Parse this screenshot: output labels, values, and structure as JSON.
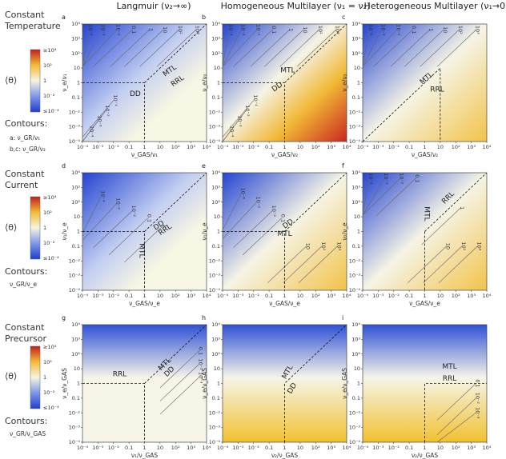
{
  "columns": [
    {
      "title": "Langmuir (ν₂→∞)"
    },
    {
      "title": "Homogeneous Multilayer (ν₁ = ν₂)"
    },
    {
      "title": "Heterogeneous Multilayer (ν₁→0)"
    }
  ],
  "rows": [
    {
      "title_line1": "Constant",
      "title_line2": "Temperature",
      "theta": "⟨θ⟩",
      "cb_ticks": [
        "≥10⁴",
        "10²",
        "1",
        "10⁻²",
        "≤10⁻⁴"
      ],
      "contours_label": "Contours:",
      "contour_lines": [
        "a:  ν_GR/ν₁",
        "b,c:  ν_GR/ν₂"
      ]
    },
    {
      "title_line1": "Constant",
      "title_line2": "Current",
      "theta": "⟨θ⟩",
      "cb_ticks": [
        "≥10⁴",
        "10²",
        "1",
        "10⁻²",
        "≤10⁻⁴"
      ],
      "contours_label": "Contours:",
      "contour_lines": [
        "ν_GR/ν_e"
      ]
    },
    {
      "title_line1": "Constant",
      "title_line2": "Precursor",
      "theta": "⟨θ⟩",
      "cb_ticks": [
        "≥10⁴",
        "10²",
        "1",
        "10⁻²",
        "≤10⁻⁴"
      ],
      "contours_label": "Contours:",
      "contour_lines": [
        "ν_GR/ν_GAS"
      ]
    }
  ],
  "chart_data": [
    {
      "type": "heatmap",
      "panel": "a",
      "xlabel": "ν_GAS/ν₁",
      "ylabel": "ν_e/ν₁",
      "xlim": [
        -4,
        4
      ],
      "ylim": [
        -4,
        4
      ],
      "scale": "log10",
      "xticks": [
        "10⁻⁴",
        "10⁻³",
        "10⁻²",
        "0.1",
        "1",
        "10",
        "10²",
        "10³",
        "10⁴"
      ],
      "yticks": [
        "10⁴",
        "10³",
        "10²",
        "10",
        "1",
        "0.1",
        "10⁻²",
        "10⁻³",
        "10⁻⁴"
      ],
      "regions": [
        "MTL",
        "RRL",
        "DD"
      ],
      "contour_labels": [
        "10⁻⁴",
        "10⁻³",
        "10⁻²",
        "0.1",
        "1",
        "10",
        "10²",
        "10³",
        "10⁻¹",
        "10⁻²",
        "10⁻³",
        "10⁻⁴"
      ]
    },
    {
      "type": "heatmap",
      "panel": "b",
      "xlabel": "ν_GAS/ν₂",
      "ylabel": "ν_e/ν₂",
      "xlim": [
        -4,
        4
      ],
      "ylim": [
        -4,
        4
      ],
      "scale": "log10",
      "xticks": [
        "10⁻⁴",
        "10⁻³",
        "10⁻²",
        "0.1",
        "1",
        "10",
        "10²",
        "10³",
        "10⁴"
      ],
      "yticks": [
        "10⁴",
        "10³",
        "10²",
        "10",
        "1",
        "0.1",
        "10⁻²",
        "10⁻³",
        "10⁻⁴"
      ],
      "regions": [
        "MTL",
        "DD"
      ],
      "contour_labels": [
        "10⁻⁴",
        "10⁻³",
        "10⁻²",
        "0.1",
        "1",
        "10",
        "10²",
        "10³",
        "10⁻¹",
        "10⁻²",
        "10⁻³",
        "10⁻⁴"
      ]
    },
    {
      "type": "heatmap",
      "panel": "c",
      "xlabel": "ν_GAS/ν₂",
      "ylabel": "ν_e/ν₂",
      "xlim": [
        -4,
        4
      ],
      "ylim": [
        -4,
        4
      ],
      "scale": "log10",
      "xticks": [
        "10⁻⁴",
        "10⁻³",
        "10⁻²",
        "0.1",
        "1",
        "10",
        "10²",
        "10³",
        "10⁴"
      ],
      "yticks": [
        "10⁴",
        "10³",
        "10²",
        "10",
        "1",
        "0.1",
        "10⁻²",
        "10⁻³",
        "10⁻⁴"
      ],
      "regions": [
        "MTL",
        "RRL"
      ],
      "contour_labels": [
        "10⁻⁴",
        "10⁻³",
        "10⁻²",
        "0.1",
        "1",
        "10",
        "10²",
        "10³"
      ]
    },
    {
      "type": "heatmap",
      "panel": "d",
      "xlabel": "ν_GAS/ν_e",
      "ylabel": "ν₁/ν_e",
      "xlim": [
        -4,
        4
      ],
      "ylim": [
        -4,
        4
      ],
      "scale": "log10",
      "xticks": [
        "10⁻⁴",
        "10⁻³",
        "10⁻²",
        "0.1",
        "1",
        "10",
        "10²",
        "10³",
        "10⁴"
      ],
      "yticks": [
        "10⁴",
        "10³",
        "10²",
        "10",
        "1",
        "0.1",
        "10⁻²",
        "10⁻³",
        "10⁻⁴"
      ],
      "regions": [
        "MTL",
        "DD",
        "RRL"
      ],
      "contour_labels": [
        "10⁻⁴",
        "10⁻³",
        "10⁻²",
        "0.1",
        "1"
      ]
    },
    {
      "type": "heatmap",
      "panel": "e",
      "xlabel": "ν_GAS/ν_e",
      "ylabel": "ν₁/ν_e",
      "xlim": [
        -4,
        4
      ],
      "ylim": [
        -4,
        4
      ],
      "scale": "log10",
      "xticks": [
        "10⁻⁴",
        "10⁻³",
        "10⁻²",
        "0.1",
        "1",
        "10",
        "10²",
        "10³",
        "10⁴"
      ],
      "yticks": [
        "10⁴",
        "10³",
        "10²",
        "10",
        "1",
        "0.1",
        "10⁻²",
        "10⁻³",
        "10⁻⁴"
      ],
      "regions": [
        "MTL",
        "DD"
      ],
      "contour_labels": [
        "10⁻⁴",
        "10⁻³",
        "10⁻²",
        "0.1",
        "10",
        "10²",
        "10³"
      ]
    },
    {
      "type": "heatmap",
      "panel": "f",
      "xlabel": "ν_GAS/ν_e",
      "ylabel": "ν₂/ν_e",
      "xlim": [
        -4,
        4
      ],
      "ylim": [
        -4,
        4
      ],
      "scale": "log10",
      "xticks": [
        "10⁻⁴",
        "10⁻³",
        "10⁻²",
        "0.1",
        "1",
        "10",
        "10²",
        "10³",
        "10⁴"
      ],
      "yticks": [
        "10⁴",
        "10³",
        "10²",
        "10",
        "1",
        "0.1",
        "10⁻²",
        "10⁻³",
        "10⁻⁴"
      ],
      "regions": [
        "MTL",
        "RRL"
      ],
      "contour_labels": [
        "10⁻⁴",
        "10⁻³",
        "10⁻²",
        "0.1",
        "1",
        "10",
        "10²",
        "10³"
      ]
    },
    {
      "type": "heatmap",
      "panel": "g",
      "xlabel": "ν₁/ν_GAS",
      "ylabel": "ν_e/ν_GAS",
      "xlim": [
        -4,
        4
      ],
      "ylim": [
        -4,
        4
      ],
      "scale": "log10",
      "xticks": [
        "10⁻⁴",
        "10⁻³",
        "10⁻²",
        "0.1",
        "1",
        "10",
        "10²",
        "10³",
        "10⁴"
      ],
      "yticks": [
        "10⁴",
        "10³",
        "10²",
        "10",
        "1",
        "0.1",
        "10⁻²",
        "10⁻³",
        "10⁻⁴"
      ],
      "regions": [
        "RRL",
        "MTL",
        "DD"
      ],
      "contour_labels": [
        "0.1",
        "10⁻²",
        "10⁻³"
      ]
    },
    {
      "type": "heatmap",
      "panel": "h",
      "xlabel": "ν₂/ν_GAS",
      "ylabel": "ν_e/ν_GAS",
      "xlim": [
        -4,
        4
      ],
      "ylim": [
        -4,
        4
      ],
      "scale": "log10",
      "xticks": [
        "10⁻⁴",
        "10⁻³",
        "10⁻²",
        "0.1",
        "1",
        "10",
        "10²",
        "10³",
        "10⁴"
      ],
      "yticks": [
        "10⁴",
        "10³",
        "10²",
        "10",
        "1",
        "0.1",
        "10⁻²",
        "10⁻³",
        "10⁻⁴"
      ],
      "regions": [
        "MTL",
        "DD"
      ],
      "contour_labels": []
    },
    {
      "type": "heatmap",
      "panel": "i",
      "xlabel": "ν₂/ν_GAS",
      "ylabel": "ν_e/ν_GAS",
      "xlim": [
        -4,
        4
      ],
      "ylim": [
        -4,
        4
      ],
      "scale": "log10",
      "xticks": [
        "10⁻⁴",
        "10⁻³",
        "10⁻²",
        "0.1",
        "1",
        "10",
        "10²",
        "10³",
        "10⁴"
      ],
      "yticks": [
        "10⁴",
        "10³",
        "10²",
        "10",
        "1",
        "0.1",
        "10⁻²",
        "10⁻³",
        "10⁻⁴"
      ],
      "regions": [
        "MTL",
        "RRL"
      ],
      "contour_labels": [
        "0.1",
        "10⁻²",
        "10⁻³"
      ]
    }
  ]
}
